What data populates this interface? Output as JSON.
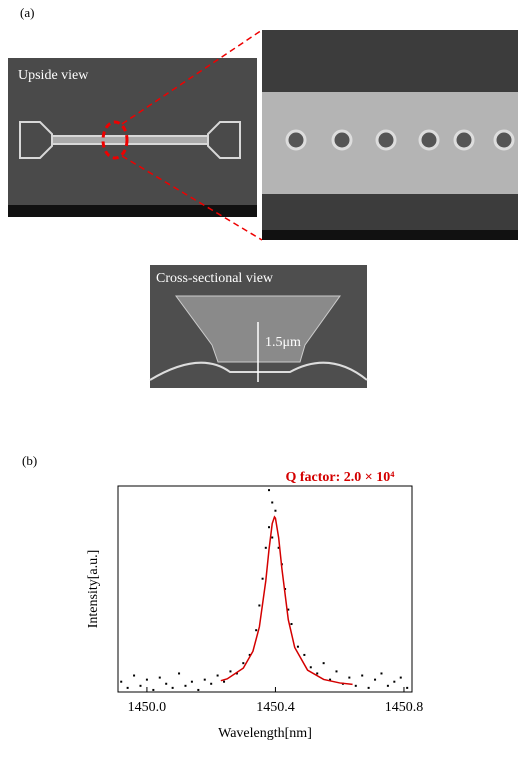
{
  "panel_a": {
    "label": "(a)",
    "upside_view": "Upside view",
    "cross_section": "Cross-sectional view",
    "thickness": "1.5μm"
  },
  "panel_b": {
    "label": "(b)"
  },
  "chart_data": {
    "type": "scatter",
    "title": "Q factor: 2.0 × 10⁴",
    "x_label": "Wavelength[nm]",
    "y_label": "Intensity[a.u.]",
    "xlim": [
      1449.91,
      1450.825
    ],
    "ylim": [
      0,
      1
    ],
    "xticks": [
      {
        "value": 1450,
        "label": "1450.0"
      },
      1450.4,
      1450.8
    ],
    "series": [
      {
        "type": "scatter",
        "color": "#000000",
        "x": [
          1449.92,
          1449.94,
          1449.96,
          1449.98,
          1450.0,
          1450.02,
          1450.04,
          1450.06,
          1450.08,
          1450.1,
          1450.12,
          1450.14,
          1450.16,
          1450.18,
          1450.2,
          1450.22,
          1450.24,
          1450.26,
          1450.28,
          1450.3,
          1450.32,
          1450.34,
          1450.35,
          1450.36,
          1450.37,
          1450.38,
          1450.38,
          1450.39,
          1450.39,
          1450.4,
          1450.41,
          1450.42,
          1450.43,
          1450.44,
          1450.45,
          1450.47,
          1450.49,
          1450.51,
          1450.53,
          1450.55,
          1450.57,
          1450.59,
          1450.61,
          1450.63,
          1450.65,
          1450.67,
          1450.69,
          1450.71,
          1450.73,
          1450.75,
          1450.77,
          1450.79,
          1450.81
        ],
        "values": [
          0.05,
          0.02,
          0.08,
          0.03,
          0.06,
          0.01,
          0.07,
          0.04,
          0.02,
          0.09,
          0.03,
          0.05,
          0.01,
          0.06,
          0.04,
          0.08,
          0.05,
          0.1,
          0.09,
          0.14,
          0.18,
          0.3,
          0.42,
          0.55,
          0.7,
          0.98,
          0.8,
          0.92,
          0.75,
          0.88,
          0.7,
          0.62,
          0.5,
          0.4,
          0.33,
          0.22,
          0.18,
          0.12,
          0.09,
          0.14,
          0.06,
          0.1,
          0.04,
          0.07,
          0.03,
          0.08,
          0.02,
          0.06,
          0.09,
          0.03,
          0.05,
          0.07,
          0.02
        ]
      },
      {
        "type": "line",
        "color": "#d40000",
        "x": [
          1450.23,
          1450.25,
          1450.3,
          1450.33,
          1450.35,
          1450.37,
          1450.38,
          1450.39,
          1450.397,
          1450.4,
          1450.41,
          1450.42,
          1450.44,
          1450.46,
          1450.5,
          1450.55,
          1450.6,
          1450.64
        ],
        "values": [
          0.055,
          0.064,
          0.116,
          0.198,
          0.316,
          0.54,
          0.692,
          0.818,
          0.85,
          0.844,
          0.749,
          0.6,
          0.351,
          0.216,
          0.106,
          0.061,
          0.044,
          0.037
        ]
      }
    ]
  }
}
